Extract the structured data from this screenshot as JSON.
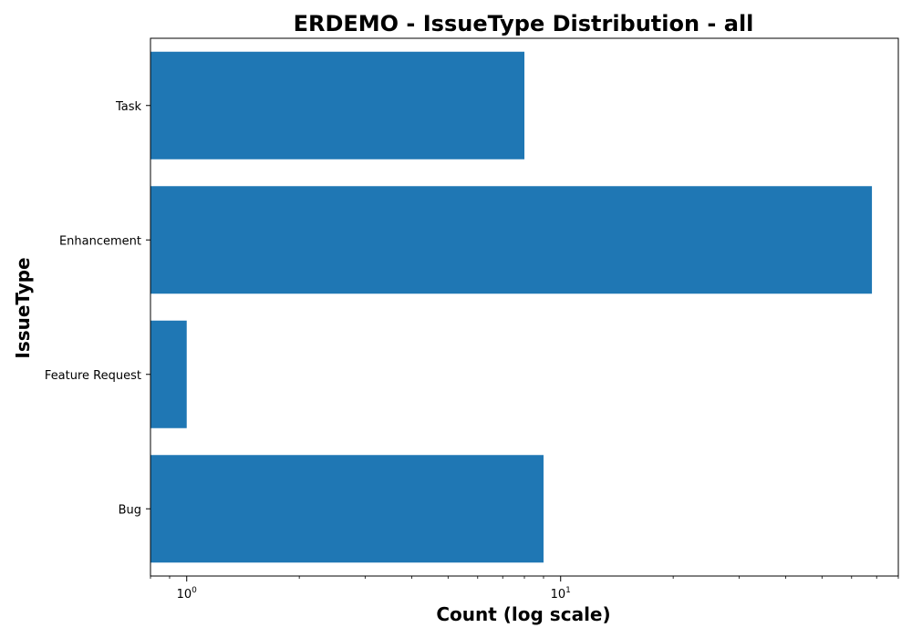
{
  "chart_data": {
    "type": "bar",
    "orientation": "horizontal",
    "title": "ERDEMO - IssueType Distribution - all",
    "xlabel": "Count (log scale)",
    "ylabel": "IssueType",
    "x_scale": "log",
    "xlim": [
      0.8,
      80
    ],
    "x_ticks": [
      {
        "value": 1,
        "base": "10",
        "exp": "0"
      },
      {
        "value": 10,
        "base": "10",
        "exp": "1"
      }
    ],
    "categories": [
      "Task",
      "Enhancement",
      "Feature Request",
      "Bug"
    ],
    "values": [
      8,
      68,
      1,
      9
    ],
    "bar_color": "#1f77b4",
    "grid": false,
    "legend": "none"
  }
}
